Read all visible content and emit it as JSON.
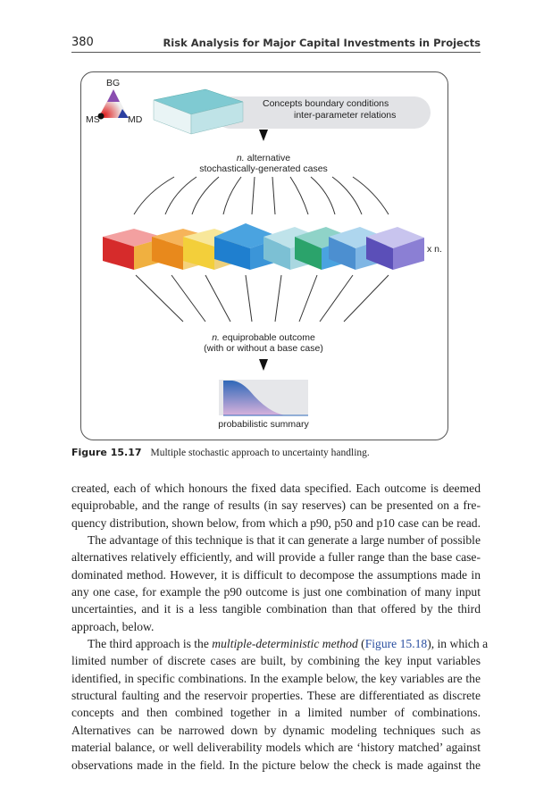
{
  "header": {
    "page_number": "380",
    "running_title": "Risk Analysis for Major Capital Investments in Projects"
  },
  "figure": {
    "triangle_labels": {
      "top": "BG",
      "left": "MS",
      "right": "MD"
    },
    "box_text": [
      "Concepts boundary conditions",
      "inter-parameter relations"
    ],
    "step1": {
      "n": "n.",
      "line1": " alternative",
      "line2": "stochastically-generated cases"
    },
    "multiplier": "x n.",
    "step2": {
      "n": "n.",
      "line1": " equiprobable outcome",
      "line2": "(with or without a base case)"
    },
    "summary_label": "probabilistic summary",
    "colors": {
      "cube_teal": "#4fb3c0",
      "orange": "#e8891c",
      "red": "#d42a2a",
      "blue": "#1f7fcf",
      "summary_blue": "#2f68b8",
      "summary_pink": "#d8b2dc"
    }
  },
  "caption": {
    "label": "Figure 15.17",
    "text": "Multiple stochastic approach to uncertainty handling."
  },
  "body": {
    "lines": [
      {
        "t": "created, each of which honours the fixed data specified. Each outcome is deemed"
      },
      {
        "t": "equiprobable, and the range of results (in say reserves) can be presented on a fre-"
      },
      {
        "t": "quency distribution, shown below, from which a p90, p50 and p10 case can be read."
      },
      {
        "t": "The advantage of this technique is that it can generate a large number of possible",
        "indent": true
      },
      {
        "t": "alternatives relatively efficiently, and will provide a fuller range than the base case-"
      },
      {
        "t": "dominated method. However, it is difficult to decompose the assumptions made in"
      },
      {
        "t": "any one case, for example the p90 outcome is just one combination of many input"
      },
      {
        "t": "uncertainties, and it is a less tangible combination than that offered by the third"
      },
      {
        "t": "approach, below.",
        "last": true
      },
      {
        "pre": "The third approach is the ",
        "em": "multiple-deterministic method",
        "mid": " (",
        "ref": "Figure 15.18",
        "post": "), in which a",
        "indent": true
      },
      {
        "t": "limited number of discrete cases are built, by combining the key input variables"
      },
      {
        "t": "identified, in specific combinations. In the example below, the key variables are the"
      },
      {
        "t": "structural faulting and the reservoir properties. These are differentiated as discrete"
      },
      {
        "t": "concepts and then combined together in a limited number of combinations."
      },
      {
        "t": "Alternatives can be narrowed down by dynamic modeling techniques such as"
      },
      {
        "t": "material balance, or well deliverability models which are ‘history matched’ against"
      },
      {
        "t": "observations made in the field. In the picture below the check is made against the"
      }
    ]
  }
}
